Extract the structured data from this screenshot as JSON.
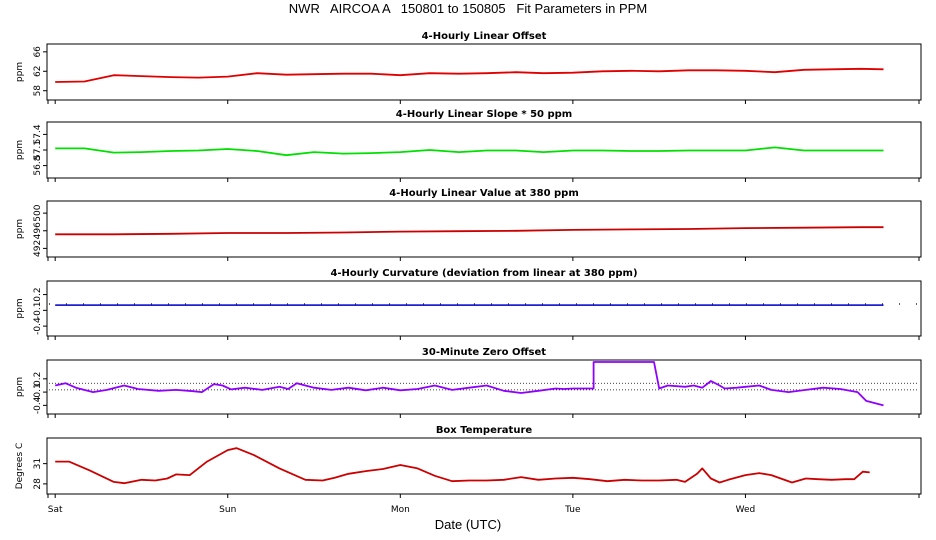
{
  "page": {
    "title": "NWR   AIRCOA A   150801 to 150805   Fit Parameters in PPM",
    "xlabel": "Date (UTC)"
  },
  "chart_data": {
    "type": "line",
    "x_domain": [
      -0.03,
      5.0
    ],
    "x_ticks": [
      {
        "value": 0,
        "label": "Sat"
      },
      {
        "value": 1,
        "label": "Sun"
      },
      {
        "value": 2,
        "label": "Mon"
      },
      {
        "value": 3,
        "label": "Tue"
      },
      {
        "value": 4,
        "label": "Wed"
      }
    ],
    "panels": [
      {
        "title": "4-Hourly Linear Offset",
        "ylabel": "ppm",
        "ylim": [
          56.5,
          67.2
        ],
        "yticks": [
          58,
          62,
          66
        ],
        "color": "#e00000",
        "style": "line",
        "points": [
          [
            0,
            59.8
          ],
          [
            0.17,
            59.9
          ],
          [
            0.34,
            61.2
          ],
          [
            0.5,
            61
          ],
          [
            0.67,
            60.8
          ],
          [
            0.83,
            60.7
          ],
          [
            1,
            60.9
          ],
          [
            1.17,
            61.6
          ],
          [
            1.34,
            61.3
          ],
          [
            1.5,
            61.4
          ],
          [
            1.67,
            61.5
          ],
          [
            1.83,
            61.5
          ],
          [
            2,
            61.2
          ],
          [
            2.17,
            61.6
          ],
          [
            2.34,
            61.5
          ],
          [
            2.5,
            61.6
          ],
          [
            2.67,
            61.8
          ],
          [
            2.83,
            61.6
          ],
          [
            3,
            61.7
          ],
          [
            3.17,
            62
          ],
          [
            3.34,
            62.1
          ],
          [
            3.5,
            62
          ],
          [
            3.67,
            62.2
          ],
          [
            3.83,
            62.2
          ],
          [
            4,
            62.1
          ],
          [
            4.17,
            61.8
          ],
          [
            4.34,
            62.3
          ],
          [
            4.5,
            62.4
          ],
          [
            4.67,
            62.5
          ],
          [
            4.8,
            62.4
          ]
        ]
      },
      {
        "title": "4-Hourly Linear Slope * 50 ppm",
        "ylabel": "ppm",
        "ylim": [
          56.6,
          57.6
        ],
        "yticks": [
          56.8,
          57.1,
          57.4
        ],
        "color": "#00e000",
        "style": "line",
        "points": [
          [
            0,
            57.13
          ],
          [
            0.17,
            57.13
          ],
          [
            0.34,
            57.05
          ],
          [
            0.5,
            57.06
          ],
          [
            0.67,
            57.08
          ],
          [
            0.83,
            57.09
          ],
          [
            1,
            57.12
          ],
          [
            1.17,
            57.08
          ],
          [
            1.34,
            57
          ],
          [
            1.5,
            57.06
          ],
          [
            1.67,
            57.03
          ],
          [
            1.83,
            57.04
          ],
          [
            2,
            57.06
          ],
          [
            2.17,
            57.1
          ],
          [
            2.34,
            57.06
          ],
          [
            2.5,
            57.09
          ],
          [
            2.67,
            57.09
          ],
          [
            2.83,
            57.06
          ],
          [
            3,
            57.09
          ],
          [
            3.17,
            57.09
          ],
          [
            3.34,
            57.08
          ],
          [
            3.5,
            57.08
          ],
          [
            3.67,
            57.09
          ],
          [
            3.83,
            57.09
          ],
          [
            4,
            57.09
          ],
          [
            4.17,
            57.15
          ],
          [
            4.34,
            57.09
          ],
          [
            4.5,
            57.09
          ],
          [
            4.67,
            57.09
          ],
          [
            4.8,
            57.09
          ]
        ]
      },
      {
        "title": "4-Hourly Linear Value at 380 ppm",
        "ylabel": "ppm",
        "ylim": [
          490.5,
          502.3
        ],
        "yticks": [
          492,
          496,
          500
        ],
        "color": "#cc0000",
        "style": "line",
        "points": [
          [
            0,
            495.2
          ],
          [
            0.34,
            495.2
          ],
          [
            0.67,
            495.3
          ],
          [
            1,
            495.5
          ],
          [
            1.34,
            495.5
          ],
          [
            1.67,
            495.6
          ],
          [
            2,
            495.8
          ],
          [
            2.34,
            495.9
          ],
          [
            2.67,
            496
          ],
          [
            3,
            496.2
          ],
          [
            3.34,
            496.3
          ],
          [
            3.67,
            496.4
          ],
          [
            4,
            496.6
          ],
          [
            4.34,
            496.7
          ],
          [
            4.67,
            496.8
          ],
          [
            4.8,
            496.8
          ]
        ]
      },
      {
        "title": "4-Hourly Curvature (deviation from linear at 380 ppm)",
        "ylabel": "ppm",
        "ylim": [
          -0.55,
          0.42
        ],
        "yticks": [
          -0.4,
          -0.1,
          0.2
        ],
        "color": "#2020d0",
        "style": "line",
        "ref_line": {
          "value": 0.02,
          "style": "sparse-dots"
        },
        "points": [
          [
            0,
            0
          ],
          [
            4.8,
            0
          ]
        ]
      },
      {
        "title": "30-Minute Zero Offset",
        "ylabel": "ppm",
        "ylim": [
          -0.55,
          0.58
        ],
        "yticks": [
          -0.4,
          -0.1,
          0.2
        ],
        "color": "#9000ff",
        "style": "line",
        "ref_lines": [
          {
            "value": 0.1,
            "style": "dotted"
          },
          {
            "value": -0.05,
            "style": "dotted"
          }
        ],
        "points": [
          [
            0,
            0.05
          ],
          [
            0.06,
            0.1
          ],
          [
            0.12,
            0
          ],
          [
            0.22,
            -0.1
          ],
          [
            0.3,
            -0.05
          ],
          [
            0.4,
            0.05
          ],
          [
            0.48,
            -0.03
          ],
          [
            0.6,
            -0.07
          ],
          [
            0.7,
            -0.05
          ],
          [
            0.8,
            -0.08
          ],
          [
            0.85,
            -0.1
          ],
          [
            0.92,
            0.08
          ],
          [
            0.97,
            0.05
          ],
          [
            1.02,
            -0.04
          ],
          [
            1.1,
            0
          ],
          [
            1.2,
            -0.05
          ],
          [
            1.3,
            0.02
          ],
          [
            1.35,
            -0.03
          ],
          [
            1.4,
            0.1
          ],
          [
            1.5,
            0
          ],
          [
            1.6,
            -0.05
          ],
          [
            1.7,
            0
          ],
          [
            1.8,
            -0.06
          ],
          [
            1.9,
            0
          ],
          [
            2,
            -0.06
          ],
          [
            2.1,
            -0.03
          ],
          [
            2.2,
            0.05
          ],
          [
            2.3,
            -0.05
          ],
          [
            2.4,
            0
          ],
          [
            2.5,
            0.05
          ],
          [
            2.6,
            -0.07
          ],
          [
            2.7,
            -0.12
          ],
          [
            2.8,
            -0.07
          ],
          [
            2.9,
            -0.02
          ],
          [
            2.95,
            -0.03
          ],
          [
            3.0,
            -0.02
          ],
          [
            3.12,
            -0.02
          ],
          [
            3.12,
            0.58
          ],
          [
            3.47,
            0.58
          ],
          [
            3.5,
            -0.02
          ],
          [
            3.55,
            0.05
          ],
          [
            3.65,
            0.02
          ],
          [
            3.7,
            0.05
          ],
          [
            3.75,
            0
          ],
          [
            3.8,
            0.15
          ],
          [
            3.85,
            0.05
          ],
          [
            3.88,
            -0.02
          ],
          [
            3.95,
            0
          ],
          [
            4,
            0.02
          ],
          [
            4.08,
            0.05
          ],
          [
            4.15,
            -0.05
          ],
          [
            4.25,
            -0.1
          ],
          [
            4.35,
            -0.05
          ],
          [
            4.45,
            0
          ],
          [
            4.55,
            -0.03
          ],
          [
            4.65,
            -0.1
          ],
          [
            4.7,
            -0.3
          ],
          [
            4.8,
            -0.4
          ]
        ]
      },
      {
        "title": "Box Temperature",
        "ylabel": "Degrees C",
        "ylim": [
          26.8,
          34.5
        ],
        "yticks": [
          28,
          31
        ],
        "color": "#cc0000",
        "style": "line",
        "points": [
          [
            0,
            31.3
          ],
          [
            0.08,
            31.3
          ],
          [
            0.2,
            30
          ],
          [
            0.34,
            28.3
          ],
          [
            0.4,
            28.1
          ],
          [
            0.5,
            28.6
          ],
          [
            0.58,
            28.5
          ],
          [
            0.65,
            28.8
          ],
          [
            0.7,
            29.4
          ],
          [
            0.78,
            29.3
          ],
          [
            0.88,
            31.3
          ],
          [
            1,
            33
          ],
          [
            1.05,
            33.3
          ],
          [
            1.15,
            32.3
          ],
          [
            1.3,
            30.3
          ],
          [
            1.45,
            28.6
          ],
          [
            1.55,
            28.5
          ],
          [
            1.62,
            28.9
          ],
          [
            1.7,
            29.5
          ],
          [
            1.8,
            29.9
          ],
          [
            1.9,
            30.2
          ],
          [
            2,
            30.8
          ],
          [
            2.1,
            30.3
          ],
          [
            2.2,
            29.2
          ],
          [
            2.3,
            28.4
          ],
          [
            2.4,
            28.5
          ],
          [
            2.5,
            28.5
          ],
          [
            2.6,
            28.6
          ],
          [
            2.7,
            29
          ],
          [
            2.8,
            28.6
          ],
          [
            2.9,
            28.8
          ],
          [
            3,
            28.9
          ],
          [
            3.1,
            28.7
          ],
          [
            3.2,
            28.4
          ],
          [
            3.3,
            28.6
          ],
          [
            3.4,
            28.5
          ],
          [
            3.5,
            28.5
          ],
          [
            3.6,
            28.6
          ],
          [
            3.65,
            28.3
          ],
          [
            3.72,
            29.5
          ],
          [
            3.75,
            30.3
          ],
          [
            3.8,
            28.8
          ],
          [
            3.85,
            28.2
          ],
          [
            3.9,
            28.6
          ],
          [
            4,
            29.3
          ],
          [
            4.08,
            29.6
          ],
          [
            4.15,
            29.3
          ],
          [
            4.27,
            28.2
          ],
          [
            4.35,
            28.8
          ],
          [
            4.42,
            28.7
          ],
          [
            4.5,
            28.6
          ],
          [
            4.58,
            28.7
          ],
          [
            4.63,
            28.7
          ],
          [
            4.68,
            29.8
          ],
          [
            4.72,
            29.7
          ]
        ]
      }
    ]
  }
}
